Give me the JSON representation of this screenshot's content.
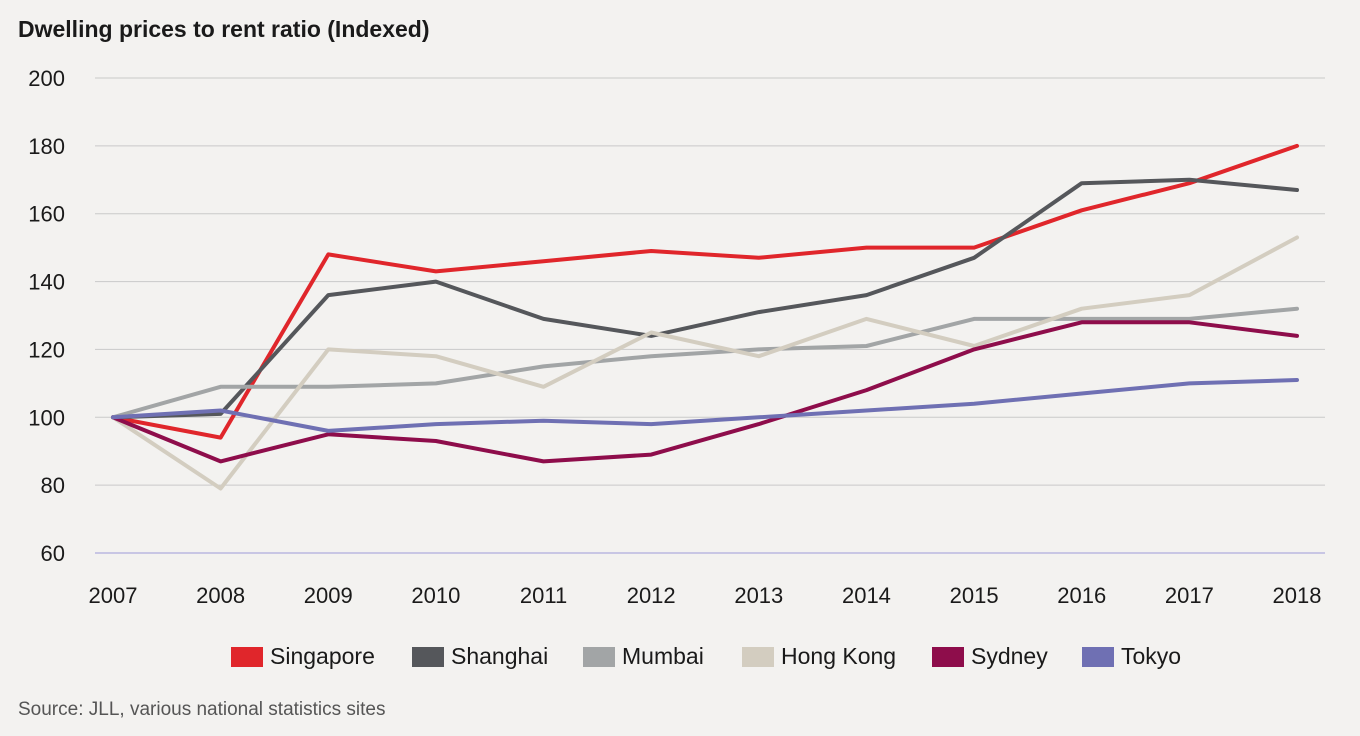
{
  "chart_data": {
    "type": "line",
    "title": "Dwelling prices to rent ratio (Indexed)",
    "source": "Source: JLL, various national statistics sites",
    "x": [
      "2007",
      "2008",
      "2009",
      "2010",
      "2011",
      "2012",
      "2013",
      "2014",
      "2015",
      "2016",
      "2017",
      "2018"
    ],
    "ylim": [
      60,
      200
    ],
    "yticks": [
      "60",
      "80",
      "100",
      "120",
      "140",
      "160",
      "180",
      "200"
    ],
    "grid": true,
    "legend_position": "bottom",
    "series": [
      {
        "name": "Singapore",
        "color": "#e0262b",
        "values": [
          100,
          94,
          148,
          143,
          146,
          149,
          147,
          150,
          150,
          161,
          169,
          180
        ]
      },
      {
        "name": "Shanghai",
        "color": "#55575b",
        "values": [
          100,
          101,
          136,
          140,
          129,
          124,
          131,
          136,
          147,
          169,
          170,
          167
        ]
      },
      {
        "name": "Mumbai",
        "color": "#a2a5a6",
        "values": [
          100,
          109,
          109,
          110,
          115,
          118,
          120,
          121,
          129,
          129,
          129,
          132
        ]
      },
      {
        "name": "Hong Kong",
        "color": "#d3cdc0",
        "values": [
          100,
          79,
          120,
          118,
          109,
          125,
          118,
          129,
          121,
          132,
          136,
          153
        ]
      },
      {
        "name": "Sydney",
        "color": "#8e0d4b",
        "values": [
          100,
          87,
          95,
          93,
          87,
          89,
          98,
          108,
          120,
          128,
          128,
          124
        ]
      },
      {
        "name": "Tokyo",
        "color": "#6f70b3",
        "values": [
          100,
          102,
          96,
          98,
          99,
          98,
          100,
          102,
          104,
          107,
          110,
          111
        ]
      }
    ]
  }
}
